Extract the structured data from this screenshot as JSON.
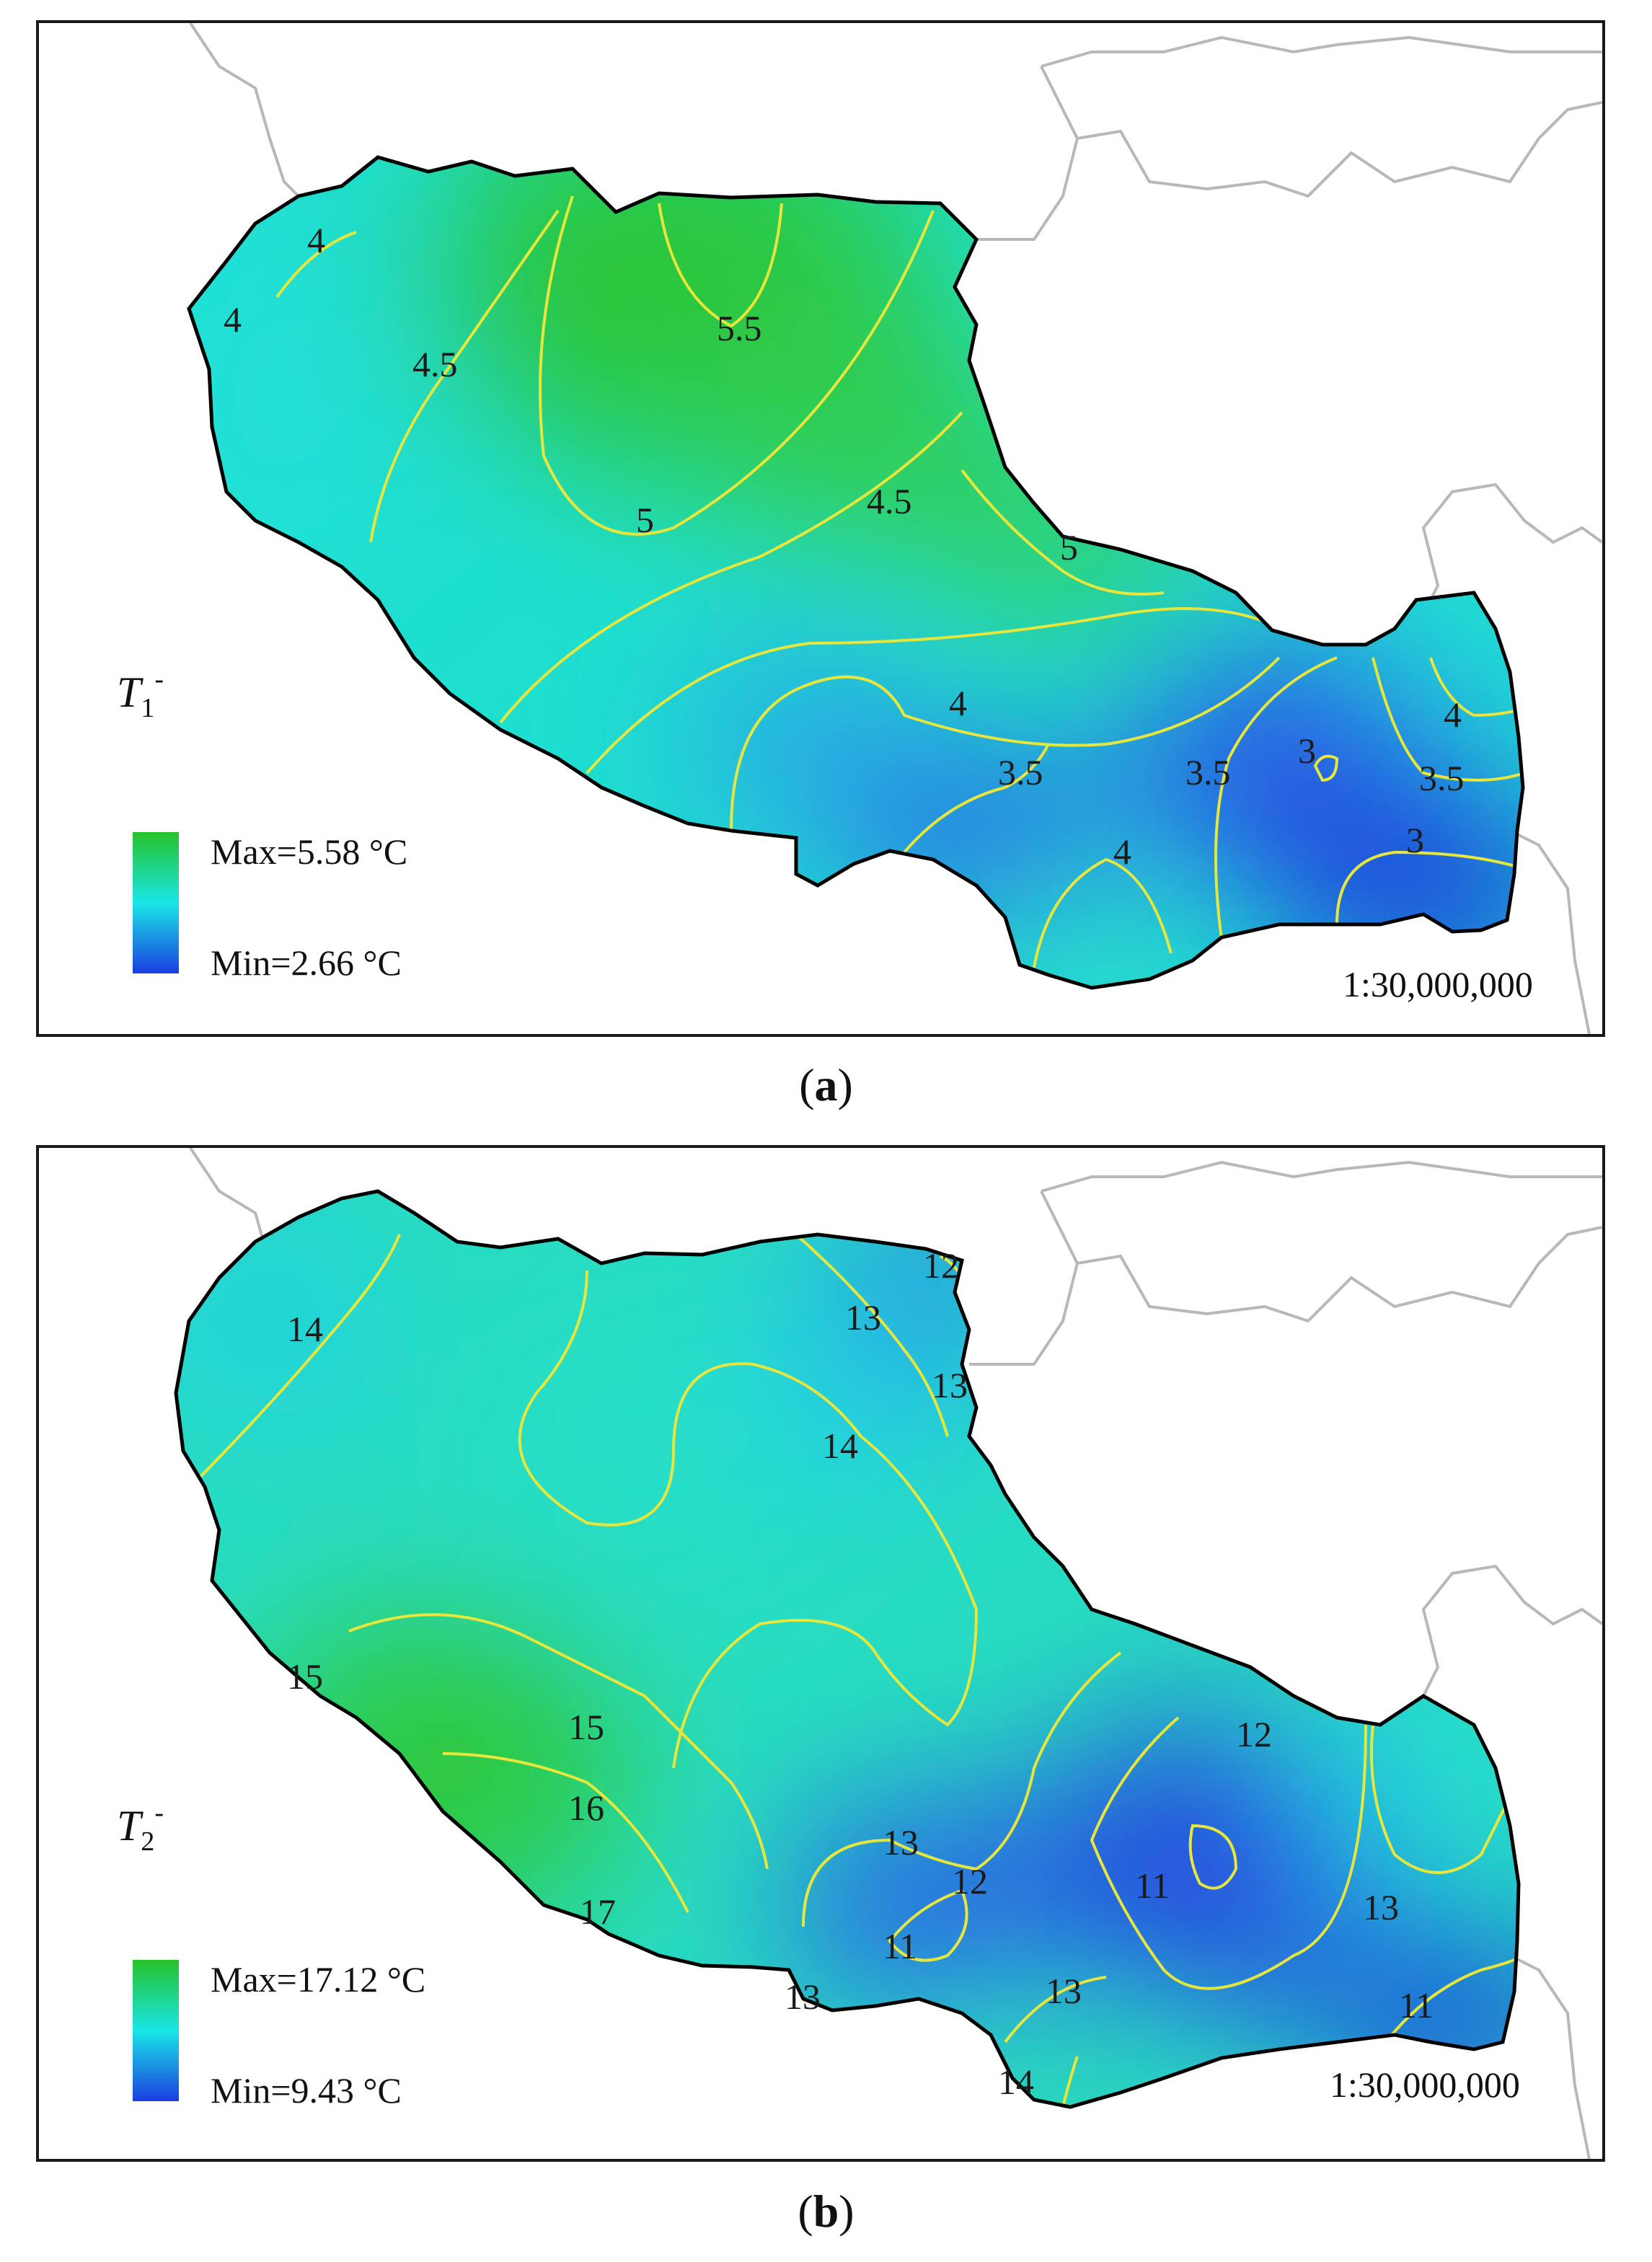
{
  "panels": [
    {
      "caption_letter": "a",
      "variable": "T",
      "variable_sub": "1",
      "variable_sup": "-",
      "legend_max": "Max=5.58 °C",
      "legend_min": "Min=2.66 °C",
      "scale": "1:30,000,000",
      "contour_labels": [
        "4",
        "4",
        "4.5",
        "5.5",
        "5",
        "4.5",
        "5",
        "4",
        "3.5",
        "3.5",
        "3",
        "4",
        "3.5",
        "3",
        "4"
      ]
    },
    {
      "caption_letter": "b",
      "variable": "T",
      "variable_sub": "2",
      "variable_sup": "-",
      "legend_max": "Max=17.12 °C",
      "legend_min": "Min=9.43 °C",
      "scale": "1:30,000,000",
      "contour_labels": [
        "14",
        "12",
        "13",
        "13",
        "14",
        "15",
        "15",
        "16",
        "17",
        "13",
        "12",
        "11",
        "13",
        "11",
        "12",
        "13",
        "11",
        "13",
        "14"
      ]
    }
  ],
  "colors": {
    "high": "#27c22a",
    "mid": "#19e6e6",
    "low": "#1a3ee0",
    "contour": "#e8e840",
    "boundary": "#000000",
    "neighbor_border": "#b4b4b4"
  }
}
